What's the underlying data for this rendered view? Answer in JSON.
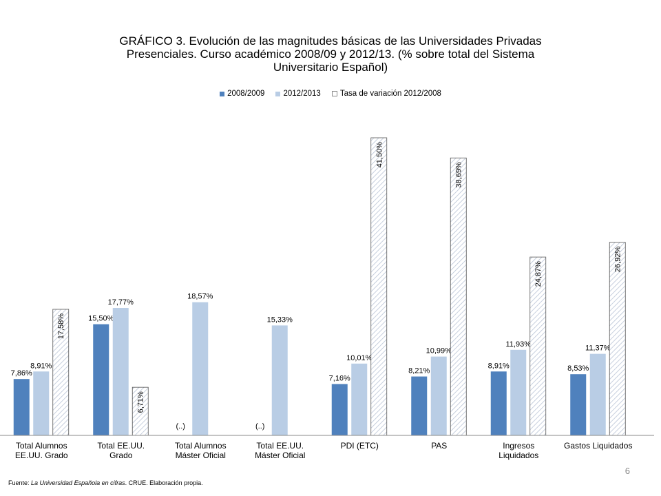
{
  "chart_data": {
    "type": "bar",
    "title_lines": [
      "GRÁFICO 3. Evolución de las magnitudes básicas de las Universidades Privadas",
      "Presenciales. Curso académico 2008/09 y 2012/13. (% sobre total del Sistema",
      "Universitario Español)"
    ],
    "categories": [
      [
        "Total Alumnos",
        "EE.UU. Grado"
      ],
      [
        "Total EE.UU.",
        "Grado"
      ],
      [
        "Total Alumnos",
        "Máster Oficial"
      ],
      [
        "Total EE.UU.",
        "Máster Oficial"
      ],
      [
        "PDI (ETC)"
      ],
      [
        "PAS"
      ],
      [
        "Ingresos",
        "Liquidados"
      ],
      [
        "Gastos Liquidados"
      ]
    ],
    "series": [
      {
        "name": "2008/2009",
        "color": "#4f81bd",
        "values": [
          7.86,
          15.5,
          null,
          null,
          7.16,
          8.21,
          8.91,
          8.53
        ],
        "labels": [
          "7,86%",
          "15,50%",
          "(..)",
          "(..)",
          "7,16%",
          "8,21%",
          "8,91%",
          "8,53%"
        ]
      },
      {
        "name": "2012/2013",
        "color": "#b9cde5",
        "values": [
          8.91,
          17.77,
          18.57,
          15.33,
          10.01,
          10.99,
          11.93,
          11.37
        ],
        "labels": [
          "8,91%",
          "17,77%",
          "18,57%",
          "15,33%",
          "10,01%",
          "10,99%",
          "11,93%",
          "11,37%"
        ]
      },
      {
        "name": "Tasa de variación 2012/2008",
        "color": "#ffffff",
        "pattern": "diagonal-hatch",
        "values": [
          17.58,
          6.71,
          null,
          null,
          41.5,
          38.69,
          24.87,
          26.92
        ],
        "labels": [
          "17,58%",
          "6,71%",
          "",
          "",
          "41,50%",
          "38,69%",
          "24,87%",
          "26,92%"
        ]
      }
    ],
    "ylim": [
      0,
      42
    ],
    "grid": false,
    "legend_position": "top"
  },
  "source": {
    "prefix": "Fuente: ",
    "italic": "La Universidad Española en cifras",
    "suffix": ". CRUE. Elaboración propia."
  },
  "page_number": "6"
}
